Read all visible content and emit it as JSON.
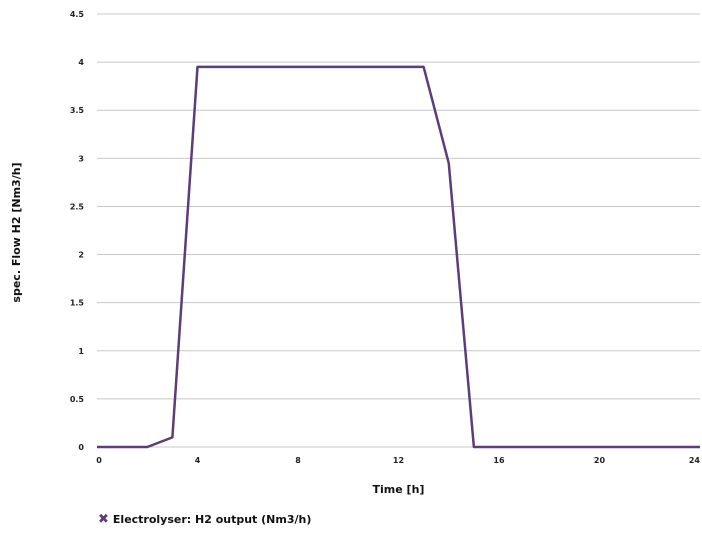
{
  "chart_data": {
    "type": "line",
    "title": "",
    "xlabel": "Time [h]",
    "ylabel": "spec. Flow H2 [Nm3/h]",
    "xlim": [
      0,
      24
    ],
    "ylim": [
      0,
      4.5
    ],
    "x_ticks": [
      "0",
      "4",
      "8",
      "12",
      "16",
      "20",
      "24"
    ],
    "y_ticks": [
      "0",
      "0.5",
      "1",
      "1.5",
      "2",
      "2.5",
      "3",
      "3.5",
      "4",
      "4.5"
    ],
    "grid": "horizontal",
    "legend_position": "bottom-left",
    "series": [
      {
        "name": "Electrolyser: H2 output (Nm3/h)",
        "color": "#5e3c7a",
        "marker": "x",
        "x": [
          0,
          1,
          2,
          3,
          4,
          5,
          6,
          7,
          8,
          9,
          10,
          11,
          12,
          13,
          14,
          15,
          16,
          17,
          18,
          19,
          20,
          21,
          22,
          23,
          24
        ],
        "y": [
          0,
          0,
          0,
          0.1,
          3.95,
          3.95,
          3.95,
          3.95,
          3.95,
          3.95,
          3.95,
          3.95,
          3.95,
          3.95,
          2.95,
          0,
          0,
          0,
          0,
          0,
          0,
          0,
          0,
          0,
          0
        ]
      }
    ]
  }
}
